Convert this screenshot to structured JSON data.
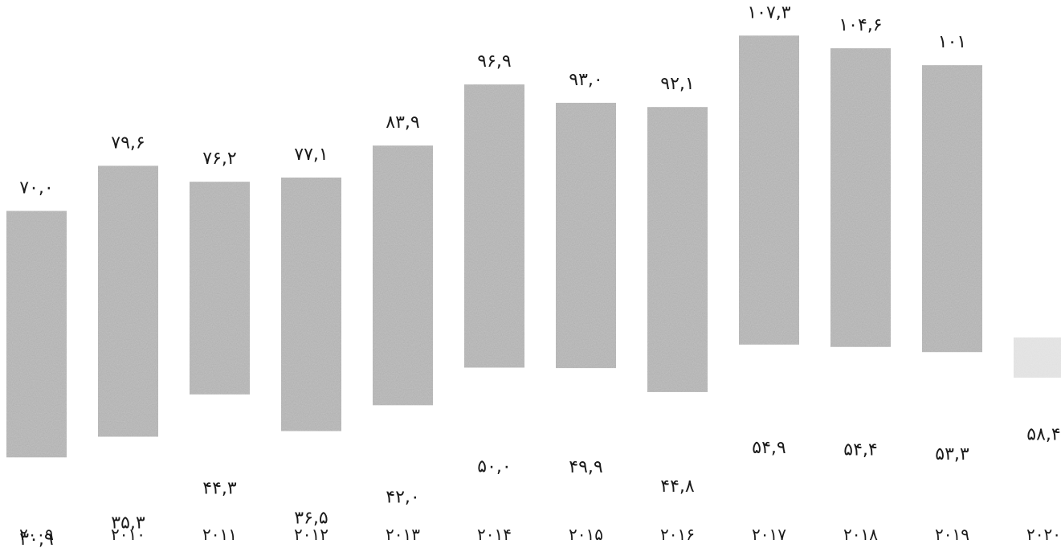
{
  "chart_data": {
    "type": "bar",
    "categories": [
      "۲۰۰۹",
      "۲۰۱۰",
      "۲۰۱۱",
      "۲۰۱۲",
      "۲۰۱۳",
      "۲۰۱۴",
      "۲۰۱۵",
      "۲۰۱۶",
      "۲۰۱۷",
      "۲۰۱۸",
      "۲۰۱۹",
      "۲۰۲۰"
    ],
    "years": [
      2009,
      2010,
      2011,
      2012,
      2013,
      2014,
      2015,
      2016,
      2017,
      2018,
      2019,
      2020
    ],
    "series": [
      {
        "values": [
          70.0,
          79.6,
          76.2,
          77.1,
          83.9,
          96.9,
          93.0,
          92.1,
          107.3,
          104.6,
          101,
          null
        ],
        "labels": [
          "۷۰,۰",
          "۷۹,۶",
          "۷۶,۲",
          "۷۷,۱",
          "۸۳,۹",
          "۹۶,۹",
          "۹۳,۰",
          "۹۲,۱",
          "۱۰۷,۳",
          "۱۰۴,۶",
          "۱۰۱",
          ""
        ]
      },
      {
        "values": [
          30.9,
          35.3,
          44.3,
          36.5,
          42.0,
          50.0,
          49.9,
          44.8,
          54.9,
          54.4,
          53.3,
          58.4
        ],
        "labels": [
          "۳۰,۹",
          "۳۵,۳",
          "۴۴,۳",
          "۳۶,۵",
          "۴۲,۰",
          "۵۰,۰",
          "۴۹,۹",
          "۴۴,۸",
          "۵۴,۹",
          "۵۴,۴",
          "۵۳,۳",
          "۵۸,۴"
        ]
      }
    ],
    "bar_color": "#b8b8b8",
    "text_color": "#1a1a1a",
    "title": "",
    "xlabel": "",
    "ylabel": "",
    "grid": false,
    "legend": "none"
  }
}
